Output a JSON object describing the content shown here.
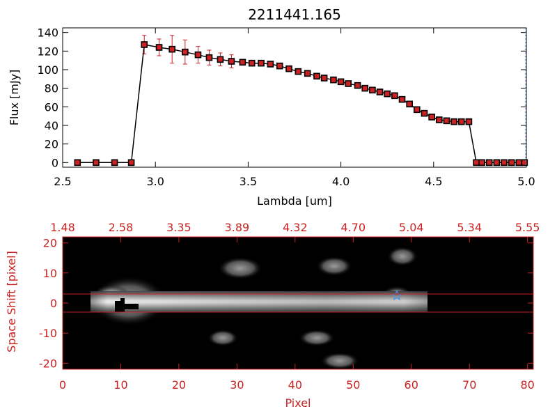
{
  "chart_data": [
    {
      "type": "line",
      "title": "2211441.165",
      "xlabel": "Lambda [um]",
      "ylabel": "Flux [mJy]",
      "xlim": [
        2.5,
        5.0
      ],
      "ylim": [
        -5,
        145
      ],
      "x_ticks": [
        2.5,
        3.0,
        3.5,
        4.0,
        4.5,
        5.0
      ],
      "x_tick_labels": [
        "2.5",
        "3.0",
        "3.5",
        "4.0",
        "4.5",
        "5.0"
      ],
      "y_ticks": [
        0,
        20,
        40,
        60,
        80,
        100,
        120,
        140
      ],
      "y_tick_labels": [
        "0",
        "20",
        "40",
        "60",
        "80",
        "100",
        "120",
        "140"
      ],
      "grid": false,
      "line_color": "#000000",
      "marker_fill": "#cc2222",
      "errorbar_color": "#cc2222",
      "series": [
        {
          "x": [
            2.58,
            2.68,
            2.78,
            2.87,
            2.94,
            3.02,
            3.09,
            3.16,
            3.23,
            3.29,
            3.35,
            3.41,
            3.47,
            3.52,
            3.57,
            3.62,
            3.67,
            3.72,
            3.77,
            3.82,
            3.87,
            3.91,
            3.96,
            4.0,
            4.04,
            4.09,
            4.13,
            4.17,
            4.21,
            4.25,
            4.29,
            4.33,
            4.37,
            4.41,
            4.45,
            4.49,
            4.53,
            4.57,
            4.61,
            4.65,
            4.69,
            4.73,
            4.76,
            4.8,
            4.84,
            4.88,
            4.92,
            4.96,
            4.99
          ],
          "y": [
            0,
            0,
            0,
            0,
            127,
            124,
            122,
            119,
            116,
            113,
            111,
            109,
            108,
            107,
            107,
            106,
            104,
            101,
            98,
            96,
            93,
            91,
            89,
            87,
            85,
            83,
            80,
            78,
            76,
            74,
            72,
            68,
            63,
            57,
            53,
            49,
            46,
            45,
            44,
            44,
            44,
            0,
            0,
            0,
            0,
            0,
            0,
            0,
            0
          ],
          "yerr": [
            0,
            0,
            0,
            0,
            10,
            9,
            15,
            13,
            9,
            8,
            7,
            7,
            0,
            0,
            0,
            0,
            0,
            0,
            0,
            0,
            0,
            0,
            0,
            0,
            0,
            0,
            0,
            0,
            0,
            0,
            0,
            0,
            0,
            0,
            0,
            0,
            0,
            0,
            0,
            0,
            0,
            0,
            0,
            0,
            0,
            0,
            0,
            0,
            0
          ]
        }
      ]
    },
    {
      "type": "heatmap",
      "xlabel": "Pixel",
      "ylabel": "Space Shift [pixel]",
      "xlim": [
        0,
        81
      ],
      "ylim": [
        -22,
        22
      ],
      "x_ticks": [
        0,
        10,
        20,
        30,
        40,
        50,
        60,
        70,
        80
      ],
      "x_tick_labels": [
        "0",
        "10",
        "20",
        "30",
        "40",
        "50",
        "60",
        "70",
        "80"
      ],
      "y_ticks": [
        -20,
        -10,
        0,
        10,
        20
      ],
      "y_tick_labels": [
        "-20",
        "-10",
        "0",
        "10",
        "20"
      ],
      "top_axis_ticks": [
        0,
        10,
        20,
        30,
        40,
        50,
        60,
        70,
        80
      ],
      "top_axis_labels": [
        "1.48",
        "2.58",
        "3.35",
        "3.89",
        "4.32",
        "4.70",
        "5.04",
        "5.34",
        "5.55"
      ],
      "extraction_lines": [
        3,
        -3
      ],
      "line_color": "#cc2222",
      "axis_color": "#cc2222",
      "colormap": "gray",
      "background": "#000000",
      "marker": {
        "type": "star",
        "x": 57.5,
        "y": 2.5,
        "color": "#4a90e2"
      }
    }
  ]
}
